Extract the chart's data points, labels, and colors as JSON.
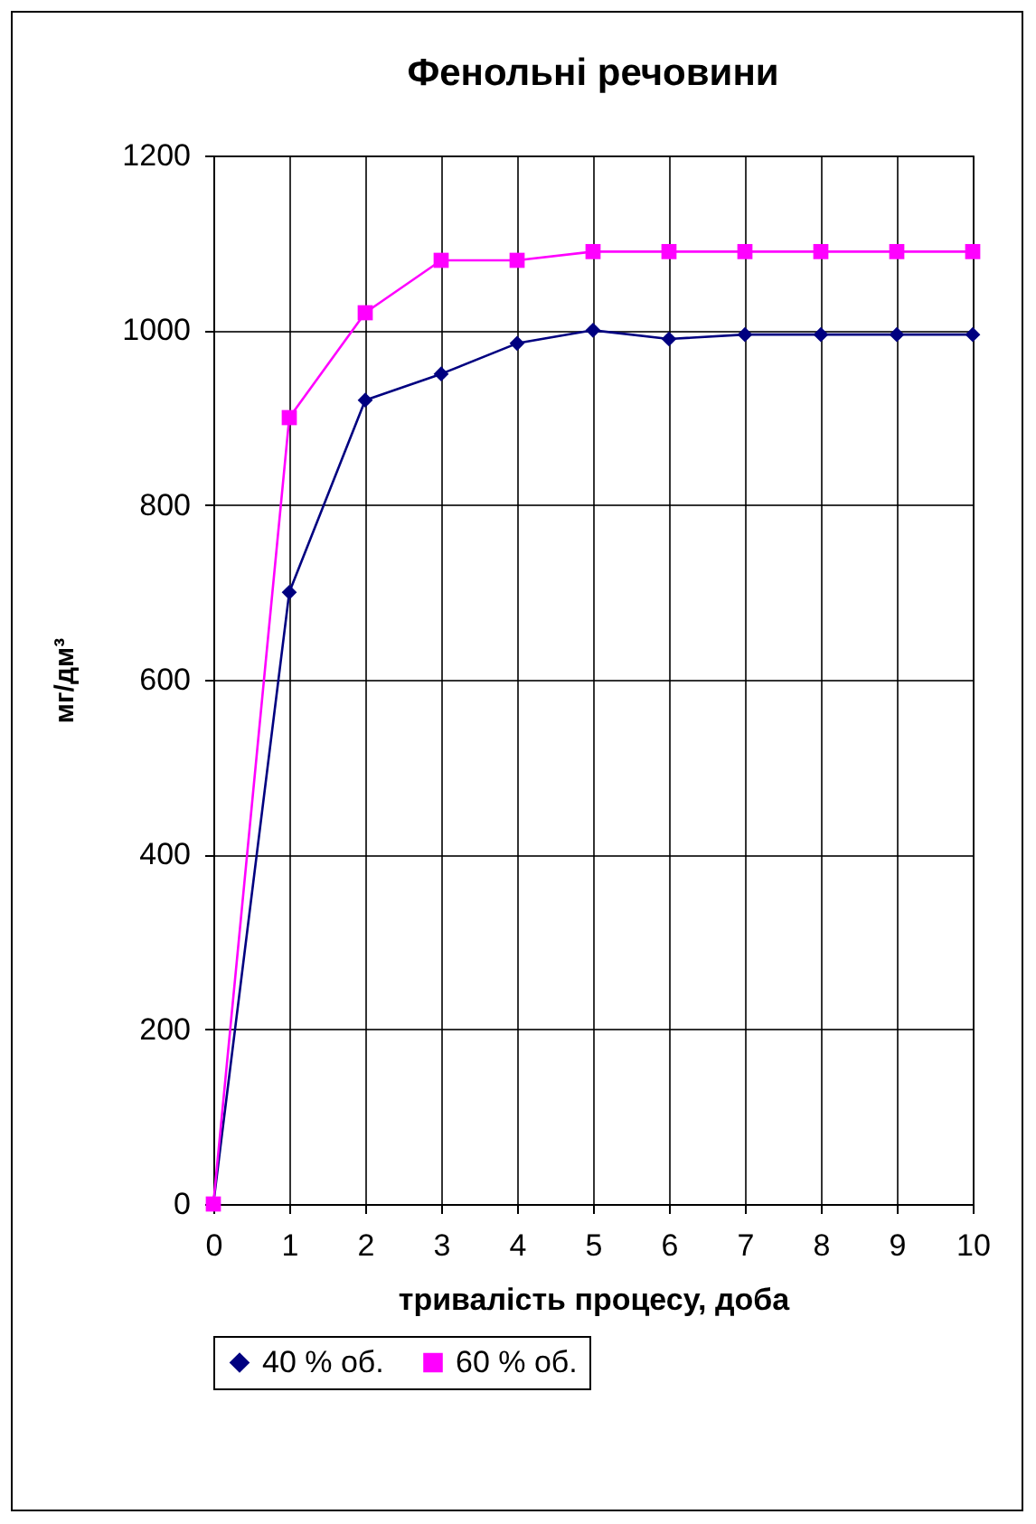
{
  "chart_data": {
    "type": "line",
    "title": "Фенольні речовини",
    "xlabel": "тривалість процесу, доба",
    "ylabel": "мг/дм³",
    "x": [
      0,
      1,
      2,
      3,
      4,
      5,
      6,
      7,
      8,
      9,
      10
    ],
    "series": [
      {
        "name": "40 % об.",
        "color": "#000080",
        "marker": "diamond",
        "values": [
          0,
          700,
          920,
          950,
          985,
          1000,
          990,
          995,
          995,
          995,
          995
        ]
      },
      {
        "name": "60 % об.",
        "color": "#ff00ff",
        "marker": "square",
        "values": [
          0,
          900,
          1020,
          1080,
          1080,
          1090,
          1090,
          1090,
          1090,
          1090,
          1090
        ]
      }
    ],
    "xlim": [
      0,
      10
    ],
    "xticks": [
      0,
      1,
      2,
      3,
      4,
      5,
      6,
      7,
      8,
      9,
      10
    ],
    "ylim": [
      0,
      1200
    ],
    "yticks": [
      0,
      200,
      400,
      600,
      800,
      1000,
      1200
    ],
    "grid": true,
    "legend": "bottom",
    "line_style": "solid"
  }
}
